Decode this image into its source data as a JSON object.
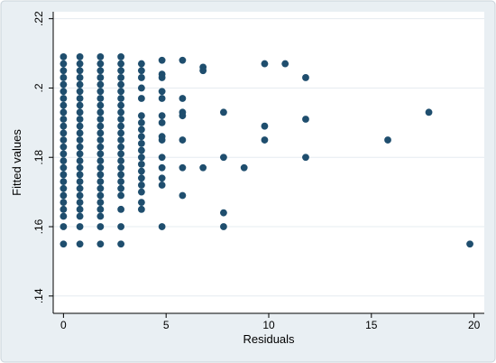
{
  "chart_data": {
    "type": "scatter",
    "title": "",
    "xlabel": "Residuals",
    "ylabel": "Fitted values",
    "xlim": [
      -0.5,
      20.5
    ],
    "ylim": [
      0.135,
      0.222
    ],
    "xticks": [
      0,
      5,
      10,
      15,
      20
    ],
    "xtick_labels": [
      "0",
      "5",
      "10",
      "15",
      "20"
    ],
    "yticks": [
      0.14,
      0.16,
      0.18,
      0.2,
      0.22
    ],
    "ytick_labels": [
      ".14",
      ".16",
      ".18",
      ".2",
      ".22"
    ],
    "grid": true,
    "legend": "none",
    "colors": {
      "marker": "#1f4e6e",
      "plot_background": "#ffffff",
      "frame_background": "#e9eff3",
      "grid": "#e6ecf0"
    },
    "series": [
      {
        "points": [
          [
            0,
            0.209
          ],
          [
            0,
            0.207
          ],
          [
            0,
            0.205
          ],
          [
            0,
            0.203
          ],
          [
            0,
            0.201
          ],
          [
            0,
            0.199
          ],
          [
            0,
            0.197
          ],
          [
            0,
            0.195
          ],
          [
            0,
            0.193
          ],
          [
            0,
            0.191
          ],
          [
            0,
            0.189
          ],
          [
            0,
            0.187
          ],
          [
            0,
            0.185
          ],
          [
            0,
            0.183
          ],
          [
            0,
            0.181
          ],
          [
            0,
            0.179
          ],
          [
            0,
            0.177
          ],
          [
            0,
            0.175
          ],
          [
            0,
            0.173
          ],
          [
            0,
            0.171
          ],
          [
            0,
            0.169
          ],
          [
            0,
            0.167
          ],
          [
            0,
            0.165
          ],
          [
            0,
            0.163
          ],
          [
            0,
            0.16
          ],
          [
            0,
            0.155
          ],
          [
            0.8,
            0.209
          ],
          [
            0.8,
            0.207
          ],
          [
            0.8,
            0.205
          ],
          [
            0.8,
            0.203
          ],
          [
            0.8,
            0.201
          ],
          [
            0.8,
            0.199
          ],
          [
            0.8,
            0.197
          ],
          [
            0.8,
            0.195
          ],
          [
            0.8,
            0.193
          ],
          [
            0.8,
            0.191
          ],
          [
            0.8,
            0.189
          ],
          [
            0.8,
            0.187
          ],
          [
            0.8,
            0.185
          ],
          [
            0.8,
            0.183
          ],
          [
            0.8,
            0.181
          ],
          [
            0.8,
            0.179
          ],
          [
            0.8,
            0.177
          ],
          [
            0.8,
            0.175
          ],
          [
            0.8,
            0.173
          ],
          [
            0.8,
            0.171
          ],
          [
            0.8,
            0.169
          ],
          [
            0.8,
            0.167
          ],
          [
            0.8,
            0.165
          ],
          [
            0.8,
            0.163
          ],
          [
            0.8,
            0.16
          ],
          [
            0.8,
            0.155
          ],
          [
            1.8,
            0.209
          ],
          [
            1.8,
            0.207
          ],
          [
            1.8,
            0.205
          ],
          [
            1.8,
            0.203
          ],
          [
            1.8,
            0.201
          ],
          [
            1.8,
            0.199
          ],
          [
            1.8,
            0.197
          ],
          [
            1.8,
            0.195
          ],
          [
            1.8,
            0.193
          ],
          [
            1.8,
            0.191
          ],
          [
            1.8,
            0.189
          ],
          [
            1.8,
            0.187
          ],
          [
            1.8,
            0.185
          ],
          [
            1.8,
            0.183
          ],
          [
            1.8,
            0.181
          ],
          [
            1.8,
            0.179
          ],
          [
            1.8,
            0.177
          ],
          [
            1.8,
            0.175
          ],
          [
            1.8,
            0.173
          ],
          [
            1.8,
            0.171
          ],
          [
            1.8,
            0.169
          ],
          [
            1.8,
            0.167
          ],
          [
            1.8,
            0.165
          ],
          [
            1.8,
            0.163
          ],
          [
            1.8,
            0.16
          ],
          [
            1.8,
            0.155
          ],
          [
            2.8,
            0.209
          ],
          [
            2.8,
            0.207
          ],
          [
            2.8,
            0.205
          ],
          [
            2.8,
            0.203
          ],
          [
            2.8,
            0.201
          ],
          [
            2.8,
            0.199
          ],
          [
            2.8,
            0.197
          ],
          [
            2.8,
            0.195
          ],
          [
            2.8,
            0.193
          ],
          [
            2.8,
            0.191
          ],
          [
            2.8,
            0.189
          ],
          [
            2.8,
            0.187
          ],
          [
            2.8,
            0.185
          ],
          [
            2.8,
            0.183
          ],
          [
            2.8,
            0.181
          ],
          [
            2.8,
            0.179
          ],
          [
            2.8,
            0.177
          ],
          [
            2.8,
            0.175
          ],
          [
            2.8,
            0.173
          ],
          [
            2.8,
            0.171
          ],
          [
            2.8,
            0.169
          ],
          [
            2.8,
            0.165
          ],
          [
            2.8,
            0.16
          ],
          [
            2.8,
            0.155
          ],
          [
            3.8,
            0.207
          ],
          [
            3.8,
            0.205
          ],
          [
            3.8,
            0.203
          ],
          [
            3.8,
            0.2
          ],
          [
            3.8,
            0.197
          ],
          [
            3.8,
            0.192
          ],
          [
            3.8,
            0.19
          ],
          [
            3.8,
            0.188
          ],
          [
            3.8,
            0.186
          ],
          [
            3.8,
            0.184
          ],
          [
            3.8,
            0.182
          ],
          [
            3.8,
            0.18
          ],
          [
            3.8,
            0.178
          ],
          [
            3.8,
            0.176
          ],
          [
            3.8,
            0.174
          ],
          [
            3.8,
            0.172
          ],
          [
            3.8,
            0.17
          ],
          [
            3.8,
            0.167
          ],
          [
            3.8,
            0.165
          ],
          [
            4.8,
            0.208
          ],
          [
            4.8,
            0.204
          ],
          [
            4.8,
            0.203
          ],
          [
            4.8,
            0.199
          ],
          [
            4.8,
            0.197
          ],
          [
            4.8,
            0.192
          ],
          [
            4.8,
            0.19
          ],
          [
            4.8,
            0.186
          ],
          [
            4.8,
            0.185
          ],
          [
            4.8,
            0.18
          ],
          [
            4.8,
            0.177
          ],
          [
            4.8,
            0.174
          ],
          [
            4.8,
            0.172
          ],
          [
            4.8,
            0.16
          ],
          [
            5.8,
            0.208
          ],
          [
            5.8,
            0.197
          ],
          [
            5.8,
            0.193
          ],
          [
            5.8,
            0.192
          ],
          [
            5.8,
            0.185
          ],
          [
            5.8,
            0.177
          ],
          [
            5.8,
            0.169
          ],
          [
            6.8,
            0.206
          ],
          [
            6.8,
            0.205
          ],
          [
            6.8,
            0.177
          ],
          [
            7.8,
            0.193
          ],
          [
            7.8,
            0.18
          ],
          [
            7.8,
            0.164
          ],
          [
            7.8,
            0.16
          ],
          [
            8.8,
            0.177
          ],
          [
            9.8,
            0.207
          ],
          [
            9.8,
            0.189
          ],
          [
            9.8,
            0.185
          ],
          [
            10.8,
            0.207
          ],
          [
            11.8,
            0.203
          ],
          [
            11.8,
            0.191
          ],
          [
            11.8,
            0.18
          ],
          [
            15.8,
            0.185
          ],
          [
            17.8,
            0.193
          ],
          [
            19.8,
            0.155
          ]
        ]
      }
    ]
  }
}
